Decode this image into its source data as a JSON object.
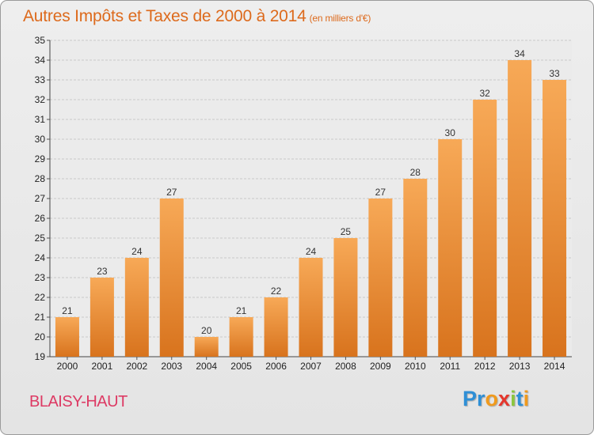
{
  "header": {
    "title": "Autres Impôts et Taxes de 2000 à 2014",
    "subtitle": "(en milliers d'€)"
  },
  "footer": {
    "commune": "BLAISY-HAUT",
    "logo_letters": [
      {
        "char": "P",
        "color": "#2e8fd6"
      },
      {
        "char": "r",
        "color": "#2e8fd6"
      },
      {
        "char": "o",
        "color": "#f09a1d"
      },
      {
        "char": "x",
        "color": "#e5362c"
      },
      {
        "char": "i",
        "color": "#8cc63f"
      },
      {
        "char": "t",
        "color": "#2e8fd6"
      },
      {
        "char": "i",
        "color": "#f09a1d"
      }
    ]
  },
  "colors": {
    "bar_light": "#f7a957",
    "bar_dark": "#d8731d",
    "title": "#dd6a1c",
    "commune": "#dd3a64"
  },
  "chart_data": {
    "type": "bar",
    "title": "Autres Impôts et Taxes de 2000 à 2014",
    "subtitle": "(en milliers d'€)",
    "categories": [
      "2000",
      "2001",
      "2002",
      "2003",
      "2004",
      "2005",
      "2006",
      "2007",
      "2008",
      "2009",
      "2010",
      "2011",
      "2012",
      "2013",
      "2014"
    ],
    "values": [
      21,
      23,
      24,
      27,
      20,
      21,
      22,
      24,
      25,
      27,
      28,
      30,
      32,
      34,
      33
    ],
    "ylim": [
      19,
      35
    ],
    "yticks": [
      19,
      20,
      21,
      22,
      23,
      24,
      25,
      26,
      27,
      28,
      29,
      30,
      31,
      32,
      33,
      34,
      35
    ],
    "grid": true,
    "xlabel": "",
    "ylabel": ""
  }
}
